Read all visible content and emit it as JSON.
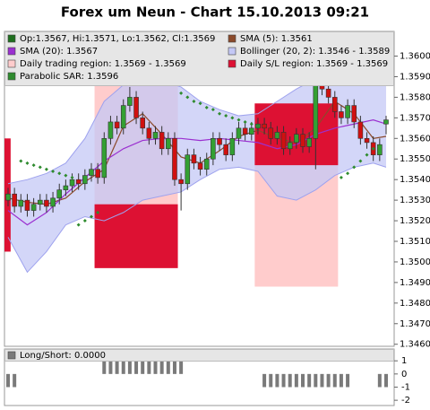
{
  "chart_data": [
    {
      "type": "candlestick",
      "title": "Forex um Neun - Chart 15.10.2013 09:21",
      "xlim": [
        -0.56,
        60.26
      ],
      "ylim": [
        1.3459,
        1.3612
      ],
      "yticks": [
        {
          "value": 1.346,
          "label": "1.3460"
        },
        {
          "value": 1.347,
          "label": "1.3470"
        },
        {
          "value": 1.348,
          "label": "1.3480"
        },
        {
          "value": 1.349,
          "label": "1.3490"
        },
        {
          "value": 1.35,
          "label": "1.3500"
        },
        {
          "value": 1.351,
          "label": "1.3510"
        },
        {
          "value": 1.352,
          "label": "1.3520"
        },
        {
          "value": 1.353,
          "label": "1.3530"
        },
        {
          "value": 1.354,
          "label": "1.3540"
        },
        {
          "value": 1.355,
          "label": "1.3550"
        },
        {
          "value": 1.356,
          "label": "1.3560"
        },
        {
          "value": 1.357,
          "label": "1.3570"
        },
        {
          "value": 1.358,
          "label": "1.3580"
        },
        {
          "value": 1.359,
          "label": "1.3590"
        },
        {
          "value": 1.36,
          "label": "1.3600"
        }
      ],
      "candles": {
        "name": "Op:1.3567, Hi:1.3571, Lo:1.3562, Cl:1.3569",
        "color": "#1f6f1f",
        "up_color": "#33a033",
        "down_color": "#d01010",
        "open": [
          1.353,
          1.3533,
          1.3527,
          1.353,
          1.3525,
          1.3528,
          1.353,
          1.3527,
          1.3531,
          1.3535,
          1.3537,
          1.354,
          1.3538,
          1.3542,
          1.3545,
          1.3541,
          1.356,
          1.3568,
          1.3565,
          1.3576,
          1.358,
          1.357,
          1.3565,
          1.356,
          1.3563,
          1.3555,
          1.356,
          1.354,
          1.3538,
          1.3552,
          1.3548,
          1.3545,
          1.355,
          1.356,
          1.3557,
          1.3552,
          1.356,
          1.3565,
          1.3562,
          1.3565,
          1.3567,
          1.3565,
          1.356,
          1.3563,
          1.3555,
          1.3558,
          1.3562,
          1.3556,
          1.356,
          1.359,
          1.3584,
          1.358,
          1.3573,
          1.357,
          1.3576,
          1.3568,
          1.356,
          1.3558,
          1.3552,
          1.3567
        ],
        "high": [
          1.3536,
          1.3536,
          1.3533,
          1.3533,
          1.3531,
          1.3533,
          1.3533,
          1.3534,
          1.3538,
          1.354,
          1.3543,
          1.3543,
          1.3545,
          1.3548,
          1.3548,
          1.3563,
          1.3571,
          1.3571,
          1.3579,
          1.3585,
          1.3583,
          1.3573,
          1.3568,
          1.3566,
          1.3566,
          1.3563,
          1.3563,
          1.3543,
          1.3555,
          1.3555,
          1.3551,
          1.3553,
          1.3563,
          1.3563,
          1.356,
          1.3563,
          1.3568,
          1.3568,
          1.3568,
          1.357,
          1.357,
          1.3568,
          1.3566,
          1.3566,
          1.3561,
          1.3565,
          1.3565,
          1.3563,
          1.3595,
          1.3593,
          1.3587,
          1.3583,
          1.3576,
          1.3579,
          1.3579,
          1.3571,
          1.3563,
          1.3561,
          1.356,
          1.3571
        ],
        "low": [
          1.3527,
          1.3524,
          1.3524,
          1.3522,
          1.3522,
          1.3525,
          1.3524,
          1.3524,
          1.3528,
          1.3532,
          1.3534,
          1.3535,
          1.3535,
          1.3539,
          1.3538,
          1.3538,
          1.3557,
          1.3562,
          1.3562,
          1.3573,
          1.3567,
          1.3562,
          1.3557,
          1.3557,
          1.3552,
          1.3552,
          1.3537,
          1.3525,
          1.3535,
          1.3545,
          1.3542,
          1.3542,
          1.3547,
          1.3554,
          1.3549,
          1.3549,
          1.3557,
          1.3559,
          1.3559,
          1.3562,
          1.3562,
          1.3557,
          1.3557,
          1.3552,
          1.3552,
          1.3555,
          1.3553,
          1.3553,
          1.3545,
          1.3581,
          1.3577,
          1.357,
          1.3567,
          1.3567,
          1.3565,
          1.3557,
          1.3555,
          1.3549,
          1.3549,
          1.3562
        ],
        "close": [
          1.3533,
          1.3527,
          1.353,
          1.3525,
          1.3528,
          1.353,
          1.3527,
          1.3531,
          1.3535,
          1.3537,
          1.354,
          1.3538,
          1.3542,
          1.3545,
          1.3541,
          1.356,
          1.3568,
          1.3565,
          1.3576,
          1.358,
          1.357,
          1.3565,
          1.356,
          1.3563,
          1.3555,
          1.356,
          1.354,
          1.3538,
          1.3552,
          1.3548,
          1.3545,
          1.355,
          1.356,
          1.3557,
          1.3552,
          1.356,
          1.3565,
          1.3562,
          1.3565,
          1.3567,
          1.3565,
          1.356,
          1.3563,
          1.3555,
          1.3558,
          1.3562,
          1.3556,
          1.356,
          1.359,
          1.3584,
          1.358,
          1.3573,
          1.357,
          1.3576,
          1.3568,
          1.356,
          1.3558,
          1.3552,
          1.3557,
          1.3569
        ]
      },
      "series": [
        {
          "name": "SMA (5): 1.3561",
          "color": "#8b4a2b",
          "x": [
            0,
            3,
            6,
            9,
            12,
            15,
            18,
            21,
            24,
            27,
            30,
            33,
            36,
            39,
            42,
            45,
            48,
            51,
            54,
            57,
            59
          ],
          "values": [
            1.3531,
            1.3529,
            1.3528,
            1.3531,
            1.3539,
            1.3545,
            1.3566,
            1.3572,
            1.3562,
            1.3551,
            1.3548,
            1.3554,
            1.3561,
            1.3564,
            1.356,
            1.3558,
            1.3565,
            1.3578,
            1.3572,
            1.356,
            1.3561
          ]
        },
        {
          "name": "SMA (20): 1.3567",
          "color": "#9b30d0",
          "x": [
            0,
            3,
            6,
            9,
            12,
            15,
            18,
            21,
            24,
            27,
            30,
            33,
            36,
            39,
            42,
            45,
            48,
            51,
            54,
            57,
            59
          ],
          "values": [
            1.3525,
            1.3518,
            1.3524,
            1.3533,
            1.3541,
            1.3549,
            1.3555,
            1.3559,
            1.356,
            1.356,
            1.3559,
            1.356,
            1.3559,
            1.3558,
            1.3555,
            1.3557,
            1.3562,
            1.3565,
            1.3567,
            1.3569,
            1.3567
          ]
        }
      ],
      "bands": {
        "name": "Bollinger (20, 2): 1.3546 - 1.3589",
        "color": "#c4c8f6",
        "line_color": "#9ea2ee",
        "x": [
          0,
          3,
          6,
          9,
          12,
          15,
          18,
          21,
          24,
          27,
          30,
          33,
          36,
          39,
          42,
          45,
          48,
          51,
          54,
          57,
          59
        ],
        "upper": [
          1.3538,
          1.354,
          1.3543,
          1.3548,
          1.356,
          1.3578,
          1.3586,
          1.3588,
          1.3588,
          1.3585,
          1.3578,
          1.3574,
          1.3571,
          1.3572,
          1.3578,
          1.3584,
          1.3589,
          1.3588,
          1.3589,
          1.359,
          1.3589
        ],
        "lower": [
          1.3512,
          1.3495,
          1.3505,
          1.3518,
          1.3522,
          1.352,
          1.3524,
          1.353,
          1.3532,
          1.3534,
          1.354,
          1.3545,
          1.3546,
          1.3544,
          1.3532,
          1.353,
          1.3535,
          1.3542,
          1.3546,
          1.3548,
          1.3546
        ]
      },
      "regions": [
        {
          "name": "Daily trading region: 1.3569 - 1.3569",
          "color": "#ffcccc",
          "items": [
            {
              "x": [
                13.5,
                26.5
              ],
              "y": [
                1.3497,
                1.3588
              ]
            },
            {
              "x": [
                38.5,
                51.5
              ],
              "y": [
                1.3488,
                1.3577
              ]
            }
          ]
        },
        {
          "name": "Daily S/L region: 1.3569 - 1.3569",
          "color": "#dd1133",
          "items": [
            {
              "x": [
                -0.56,
                0.4
              ],
              "y": [
                1.3505,
                1.356
              ]
            },
            {
              "x": [
                13.5,
                26.5
              ],
              "y": [
                1.3497,
                1.3528
              ]
            },
            {
              "x": [
                38.5,
                51.5
              ],
              "y": [
                1.3547,
                1.3577
              ]
            }
          ]
        }
      ],
      "sar": {
        "name": "Parabolic SAR: 1.3596",
        "color": "#2e8b2e",
        "x": [
          2,
          3,
          4,
          5,
          6,
          7,
          8,
          9,
          10,
          11,
          12,
          13,
          14,
          27,
          28,
          29,
          30,
          31,
          32,
          33,
          34,
          35,
          36,
          37,
          38,
          39,
          52,
          53,
          54,
          55,
          56,
          57,
          58,
          59
        ],
        "values": [
          1.3549,
          1.3548,
          1.3547,
          1.3546,
          1.3545,
          1.3544,
          1.3543,
          1.3542,
          1.3541,
          1.3518,
          1.352,
          1.3522,
          1.3524,
          1.3582,
          1.358,
          1.3578,
          1.3577,
          1.3575,
          1.3574,
          1.3572,
          1.3571,
          1.357,
          1.3569,
          1.3568,
          1.3567,
          1.3566,
          1.3541,
          1.3543,
          1.3546,
          1.3549,
          1.3552,
          1.3555,
          1.3598,
          1.3596
        ]
      }
    },
    {
      "type": "bar",
      "label": "Long/Short: 0.0000",
      "color": "#7a7a7a",
      "xlim": [
        -0.56,
        60.26
      ],
      "ylim": [
        -2.4,
        1.9
      ],
      "yticks": [
        1,
        0,
        -1,
        -2
      ],
      "values": [
        -1,
        -1,
        0,
        0,
        0,
        0,
        0,
        0,
        0,
        0,
        0,
        0,
        0,
        0,
        0,
        1,
        1,
        1,
        1,
        1,
        1,
        1,
        1,
        1,
        1,
        1,
        1,
        1,
        0,
        0,
        0,
        0,
        0,
        0,
        0,
        0,
        0,
        0,
        0,
        0,
        -1,
        -1,
        -1,
        -1,
        -1,
        -1,
        -1,
        -1,
        -1,
        -1,
        -1,
        -1,
        -1,
        -1,
        0,
        0,
        0,
        0,
        -1,
        -1
      ]
    }
  ]
}
